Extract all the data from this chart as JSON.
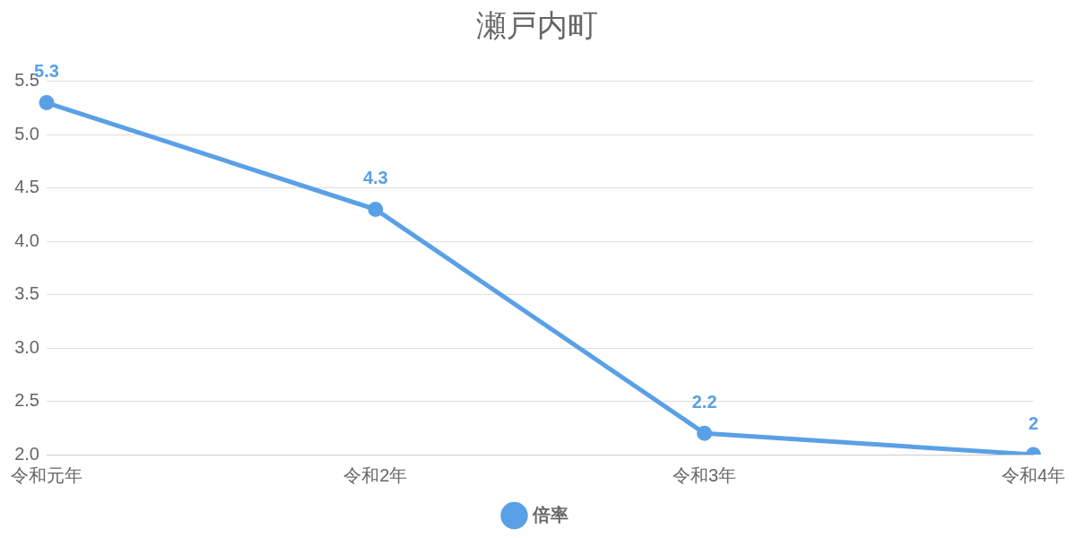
{
  "chart_data": {
    "type": "line",
    "title": "瀬戸内町",
    "categories": [
      "令和元年",
      "令和2年",
      "令和3年",
      "令和4年"
    ],
    "series": [
      {
        "name": "倍率",
        "color": "#5aa0e6",
        "values": [
          5.3,
          4.3,
          2.2,
          2
        ]
      }
    ],
    "ylim": [
      2,
      5.5
    ],
    "yticks": [
      {
        "value": 2,
        "label": "2.0"
      },
      2.5,
      {
        "value": 3,
        "label": "3.0"
      },
      3.5,
      {
        "value": 4,
        "label": "4.0"
      },
      4.5,
      {
        "value": 5,
        "label": "5.0"
      },
      5.5
    ],
    "grid": "y",
    "legend": "bottom",
    "marker": "circle",
    "data_labels": true
  }
}
